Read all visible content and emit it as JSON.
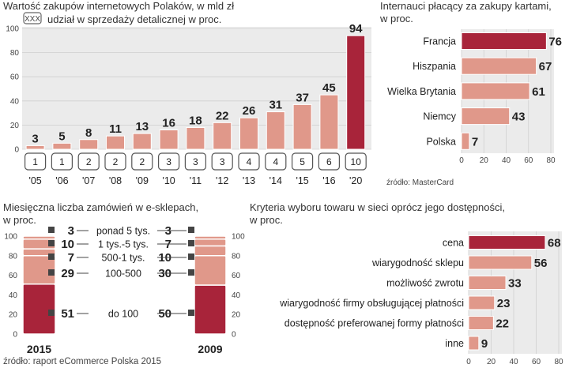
{
  "colors": {
    "bar": "#e0988a",
    "barDark": "#a8243a",
    "track": "#ebebeb",
    "grid": "#d0d0d0",
    "text": "#222222"
  },
  "chart_data": [
    {
      "type": "bar",
      "title": "Wartość zakupów internetowych Polaków, w mld zł",
      "legend_box": "XXX",
      "legend_text": "udział w sprzedaży detalicznej w proc.",
      "categories": [
        "'05",
        "'06",
        "'07",
        "'08",
        "'09",
        "'10",
        "'11",
        "'12",
        "'13",
        "'14",
        "'15",
        "'16",
        "'20"
      ],
      "values": [
        3,
        5,
        8,
        11,
        13,
        16,
        18,
        22,
        26,
        31,
        37,
        45,
        94
      ],
      "shares": [
        1,
        1,
        2,
        2,
        2,
        3,
        3,
        3,
        4,
        4,
        5,
        6,
        10
      ],
      "highlight_index": 12,
      "yticks": [
        0,
        20,
        40,
        60,
        80,
        100
      ],
      "ylim": [
        0,
        100
      ]
    },
    {
      "type": "bar",
      "orientation": "horizontal",
      "title_lines": [
        "Internauci płacący za zakupy kartami,",
        "w proc."
      ],
      "categories": [
        "Francja",
        "Hiszpania",
        "Wielka Brytania",
        "Niemcy",
        "Polska"
      ],
      "values": [
        76,
        67,
        61,
        43,
        7
      ],
      "highlight_index": 0,
      "xticks": [
        0,
        20,
        40,
        60,
        80
      ],
      "xlim": [
        0,
        80
      ],
      "source": "źródło: MasterCard"
    },
    {
      "type": "bar",
      "stacked": true,
      "title_lines": [
        "Miesięczna liczba zamówień w e-sklepach,",
        "w proc."
      ],
      "years": [
        "2015",
        "2009"
      ],
      "segments": [
        "do 100",
        "100-500",
        "500-1 tys.",
        "1 tys.-5 tys.",
        "ponad 5 tys."
      ],
      "series": [
        {
          "name": "2015",
          "values": [
            51,
            29,
            7,
            10,
            3
          ]
        },
        {
          "name": "2009",
          "values": [
            50,
            30,
            10,
            7,
            3
          ]
        }
      ],
      "yticks": [
        0,
        20,
        40,
        60,
        80,
        100
      ],
      "ylim": [
        0,
        100
      ],
      "source": "źródło: raport eCommerce Polska 2015"
    },
    {
      "type": "bar",
      "orientation": "horizontal",
      "title_lines": [
        "Kryteria wyboru towaru w sieci oprócz jego dostępności,",
        "w proc."
      ],
      "categories": [
        "cena",
        "wiarygodność sklepu",
        "możliwość zwrotu",
        "wiarygodność firmy obsługującej płatności",
        "dostępność preferowanej formy płatności",
        "inne"
      ],
      "values": [
        68,
        56,
        33,
        23,
        22,
        9
      ],
      "highlight_index": 0,
      "xticks": [
        0,
        20,
        40,
        60,
        80
      ],
      "xlim": [
        0,
        80
      ]
    }
  ]
}
